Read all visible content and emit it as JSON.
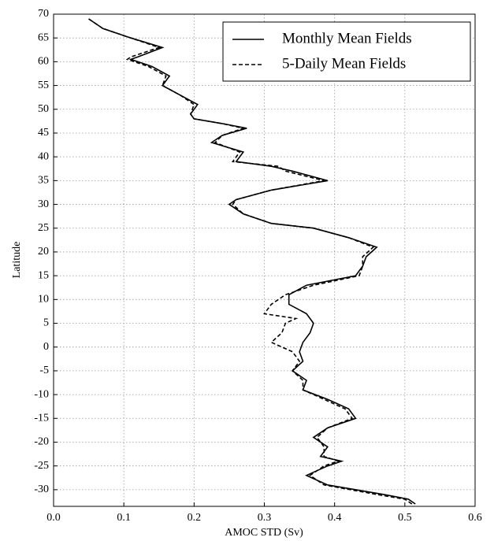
{
  "chart_data": {
    "type": "line",
    "x_label": "AMOC STD (Sv)",
    "y_label": "Latitude",
    "y": [
      69,
      67,
      65,
      63,
      61,
      60.5,
      59,
      57,
      55,
      53,
      51,
      49,
      48,
      47,
      46,
      44.5,
      43,
      41,
      39,
      38,
      37,
      35,
      33,
      31,
      30,
      28,
      26,
      25,
      23,
      21,
      19,
      17,
      15,
      13,
      11,
      9,
      7,
      6,
      5,
      3,
      1,
      -1,
      -3,
      -5,
      -7,
      -9,
      -11,
      -13,
      -15,
      -17,
      -19,
      -21,
      -23,
      -24,
      -25,
      -27,
      -29,
      -31,
      -32,
      -33
    ],
    "series": [
      {
        "name": "Monthly Mean Fields",
        "color": "#000000",
        "dash": false,
        "values": [
          0.05,
          0.07,
          0.11,
          0.155,
          0.12,
          0.11,
          0.14,
          0.165,
          0.155,
          0.18,
          0.205,
          0.195,
          0.2,
          0.24,
          0.275,
          0.24,
          0.225,
          0.27,
          0.26,
          0.31,
          0.34,
          0.39,
          0.31,
          0.26,
          0.25,
          0.27,
          0.31,
          0.37,
          0.42,
          0.46,
          0.445,
          0.44,
          0.43,
          0.36,
          0.335,
          0.335,
          0.36,
          0.365,
          0.37,
          0.365,
          0.355,
          0.35,
          0.355,
          0.34,
          0.36,
          0.355,
          0.39,
          0.42,
          0.43,
          0.39,
          0.37,
          0.39,
          0.38,
          0.41,
          0.39,
          0.36,
          0.39,
          0.47,
          0.505,
          0.515
        ]
      },
      {
        "name": "5-Daily Mean Fields",
        "color": "#000000",
        "dash": true,
        "values": [
          0.05,
          0.07,
          0.11,
          0.15,
          0.11,
          0.105,
          0.135,
          0.16,
          0.155,
          0.18,
          0.2,
          0.195,
          0.2,
          0.24,
          0.27,
          0.24,
          0.23,
          0.265,
          0.255,
          0.32,
          0.33,
          0.385,
          0.31,
          0.26,
          0.255,
          0.27,
          0.31,
          0.37,
          0.42,
          0.455,
          0.44,
          0.44,
          0.435,
          0.37,
          0.33,
          0.31,
          0.3,
          0.345,
          0.33,
          0.325,
          0.31,
          0.34,
          0.35,
          0.34,
          0.355,
          0.355,
          0.385,
          0.415,
          0.425,
          0.39,
          0.375,
          0.385,
          0.385,
          0.405,
          0.385,
          0.365,
          0.385,
          0.46,
          0.5,
          0.51
        ]
      }
    ],
    "xlim": [
      0,
      0.6
    ],
    "ylim": [
      -33.5,
      70
    ],
    "xticks": [
      {
        "value": 0,
        "label": "0.0"
      },
      0.1,
      0.2,
      0.3,
      0.4,
      0.5,
      0.6
    ],
    "yticks": [
      -30,
      -25,
      -20,
      -15,
      -10,
      -5,
      0,
      5,
      10,
      15,
      20,
      25,
      30,
      35,
      40,
      45,
      50,
      55,
      60,
      65,
      70
    ],
    "grid": true,
    "legend": "upper right"
  }
}
